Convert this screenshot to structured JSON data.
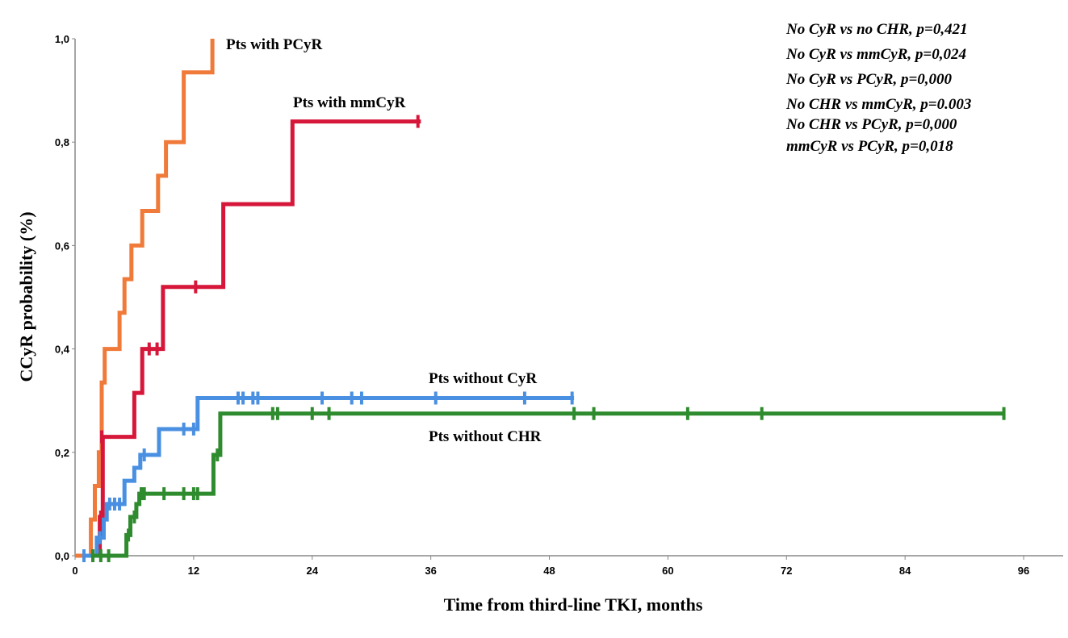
{
  "chart_data": {
    "type": "line",
    "subtype": "kaplan-meier-step",
    "title": "",
    "xlabel": "Time from third-line TKI, months",
    "ylabel": "CCyR probability (%)",
    "xlim": [
      0,
      100
    ],
    "ylim": [
      0,
      1.0
    ],
    "xticks": [
      0,
      12,
      24,
      36,
      48,
      60,
      72,
      84,
      96
    ],
    "xtick_labels": [
      "0",
      "12",
      "24",
      "36",
      "48",
      "60",
      "72",
      "84",
      "96"
    ],
    "yticks": [
      0,
      0.2,
      0.4,
      0.6,
      0.8,
      1.0
    ],
    "ytick_labels": [
      "0,0",
      "0,2",
      "0,4",
      "0,6",
      "0,8",
      "1,0"
    ],
    "grid": false,
    "series": [
      {
        "name": "Pts with PCyR",
        "color": "#f07a3a",
        "steps": [
          [
            0,
            0
          ],
          [
            1.6,
            0
          ],
          [
            1.6,
            0.07
          ],
          [
            2.0,
            0.07
          ],
          [
            2.0,
            0.135
          ],
          [
            2.4,
            0.135
          ],
          [
            2.4,
            0.2
          ],
          [
            2.7,
            0.2
          ],
          [
            2.7,
            0.335
          ],
          [
            3.0,
            0.335
          ],
          [
            3.0,
            0.4
          ],
          [
            4.5,
            0.4
          ],
          [
            4.5,
            0.47
          ],
          [
            5.0,
            0.47
          ],
          [
            5.0,
            0.535
          ],
          [
            5.7,
            0.535
          ],
          [
            5.7,
            0.6
          ],
          [
            6.8,
            0.6
          ],
          [
            6.8,
            0.667
          ],
          [
            8.4,
            0.667
          ],
          [
            8.4,
            0.735
          ],
          [
            9.2,
            0.735
          ],
          [
            9.2,
            0.8
          ],
          [
            11.0,
            0.8
          ],
          [
            11.0,
            0.935
          ],
          [
            13.9,
            0.935
          ],
          [
            13.9,
            1.0
          ]
        ],
        "censored": []
      },
      {
        "name": "Pts with mmCyR",
        "color": "#d6173a",
        "steps": [
          [
            2.0,
            0
          ],
          [
            2.5,
            0
          ],
          [
            2.5,
            0.075
          ],
          [
            2.8,
            0.075
          ],
          [
            2.8,
            0.23
          ],
          [
            6.0,
            0.23
          ],
          [
            6.0,
            0.315
          ],
          [
            6.8,
            0.315
          ],
          [
            6.8,
            0.4
          ],
          [
            8.9,
            0.4
          ],
          [
            8.9,
            0.52
          ],
          [
            15.0,
            0.52
          ],
          [
            15.0,
            0.68
          ],
          [
            22.0,
            0.68
          ],
          [
            22.0,
            0.84
          ],
          [
            35.0,
            0.84
          ]
        ],
        "censored": [
          [
            2.6,
            0.075
          ],
          [
            2.7,
            0.23
          ],
          [
            7.5,
            0.4
          ],
          [
            8.3,
            0.4
          ],
          [
            12.2,
            0.52
          ],
          [
            34.7,
            0.84
          ]
        ]
      },
      {
        "name": "Pts without CyR",
        "color": "#4a90e2",
        "steps": [
          [
            0.8,
            0
          ],
          [
            2.2,
            0
          ],
          [
            2.2,
            0.035
          ],
          [
            2.9,
            0.035
          ],
          [
            2.9,
            0.07
          ],
          [
            3.2,
            0.07
          ],
          [
            3.2,
            0.1
          ],
          [
            5.0,
            0.1
          ],
          [
            5.0,
            0.145
          ],
          [
            6.0,
            0.145
          ],
          [
            6.0,
            0.17
          ],
          [
            6.6,
            0.17
          ],
          [
            6.6,
            0.195
          ],
          [
            8.5,
            0.195
          ],
          [
            8.5,
            0.245
          ],
          [
            12.4,
            0.245
          ],
          [
            12.4,
            0.305
          ],
          [
            50.5,
            0.305
          ]
        ],
        "censored": [
          [
            0.9,
            0
          ],
          [
            2.5,
            0.035
          ],
          [
            3.5,
            0.1
          ],
          [
            4.0,
            0.1
          ],
          [
            4.5,
            0.1
          ],
          [
            7.0,
            0.195
          ],
          [
            11.0,
            0.245
          ],
          [
            12.0,
            0.245
          ],
          [
            16.5,
            0.305
          ],
          [
            17.0,
            0.305
          ],
          [
            18.0,
            0.305
          ],
          [
            18.5,
            0.305
          ],
          [
            25.0,
            0.305
          ],
          [
            28.0,
            0.305
          ],
          [
            29.0,
            0.305
          ],
          [
            36.5,
            0.305
          ],
          [
            45.5,
            0.305
          ],
          [
            50.3,
            0.305
          ]
        ]
      },
      {
        "name": "Pts without CHR",
        "color": "#2e8b2e",
        "steps": [
          [
            1.6,
            0
          ],
          [
            5.2,
            0
          ],
          [
            5.2,
            0.04
          ],
          [
            5.6,
            0.04
          ],
          [
            5.6,
            0.075
          ],
          [
            6.2,
            0.075
          ],
          [
            6.2,
            0.1
          ],
          [
            6.5,
            0.1
          ],
          [
            6.5,
            0.12
          ],
          [
            14.0,
            0.12
          ],
          [
            14.0,
            0.195
          ],
          [
            14.7,
            0.195
          ],
          [
            14.7,
            0.275
          ],
          [
            94.0,
            0.275
          ]
        ],
        "censored": [
          [
            1.8,
            0
          ],
          [
            2.6,
            0
          ],
          [
            3.4,
            0
          ],
          [
            5.4,
            0.04
          ],
          [
            6.0,
            0.075
          ],
          [
            6.7,
            0.12
          ],
          [
            7.0,
            0.12
          ],
          [
            9.0,
            0.12
          ],
          [
            11.0,
            0.12
          ],
          [
            12.0,
            0.12
          ],
          [
            12.4,
            0.12
          ],
          [
            14.4,
            0.195
          ],
          [
            20.0,
            0.275
          ],
          [
            20.5,
            0.275
          ],
          [
            24.0,
            0.275
          ],
          [
            25.7,
            0.275
          ],
          [
            50.5,
            0.275
          ],
          [
            52.5,
            0.275
          ],
          [
            62.0,
            0.275
          ],
          [
            69.5,
            0.275
          ],
          [
            94.0,
            0.275
          ]
        ]
      }
    ],
    "series_labels": [
      {
        "text": "Pts with PCyR"
      },
      {
        "text": "Pts with mmCyR"
      },
      {
        "text": "Pts without CyR"
      },
      {
        "text": "Pts without CHR"
      }
    ],
    "annotations": [
      "No CyR vs no CHR, p=0,421",
      "No CyR vs mmCyR, p=0,024",
      "No CyR vs PCyR, p=0,000",
      "No CHR vs mmCyR, p=0.003",
      "No CHR vs PCyR, p=0,000",
      "mmCyR vs PCyR, p=0,018"
    ]
  }
}
